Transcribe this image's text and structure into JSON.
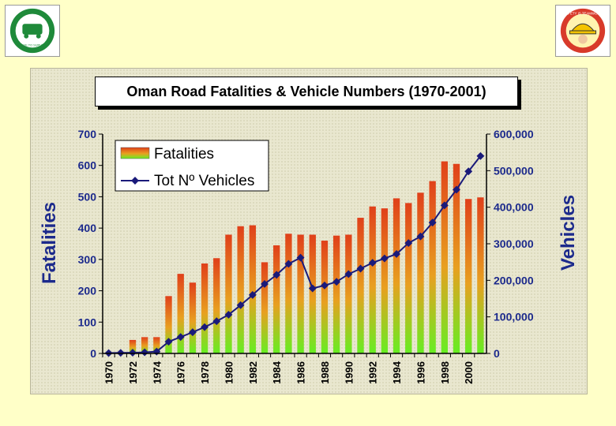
{
  "logos": {
    "left": {
      "icon": "drive-to-survive-logo",
      "text": "DRIVE TO SURVIVE"
    },
    "right": {
      "icon": "safety-teamwork-logo",
      "text": "SAFETY IS TEAMWORK"
    }
  },
  "chart_data": {
    "type": "bar",
    "title": "Oman Road Fatalities & Vehicle Numbers (1970-2001)",
    "ylabel": "Fatalities",
    "y2label": "Vehicles",
    "ylim": [
      0,
      700
    ],
    "y2lim": [
      0,
      600000
    ],
    "y_ticks": [
      "0",
      "100",
      "200",
      "300",
      "400",
      "500",
      "600",
      "700"
    ],
    "y2_ticks": [
      "0",
      "100,000",
      "200,000",
      "300,000",
      "400,000",
      "500,000",
      "600,000"
    ],
    "x_tick_labels": [
      "1970",
      "1972",
      "1974",
      "1976",
      "1978",
      "1980",
      "1982",
      "1984",
      "1986",
      "1988",
      "1990",
      "1992",
      "1994",
      "1996",
      "1998",
      "2000"
    ],
    "x": [
      1970,
      1971,
      1972,
      1973,
      1974,
      1975,
      1976,
      1977,
      1978,
      1979,
      1980,
      1981,
      1982,
      1983,
      1984,
      1985,
      1986,
      1987,
      1988,
      1989,
      1990,
      1991,
      1992,
      1993,
      1994,
      1995,
      1996,
      1997,
      1998,
      1999,
      2000,
      2001
    ],
    "legend": {
      "position": "top-left",
      "entries": [
        "Fatalities",
        "Tot Nº Vehicles"
      ]
    },
    "grid": false,
    "series": [
      {
        "name": "Fatalities",
        "type": "bar",
        "axis": "left",
        "values": [
          0,
          0,
          43,
          52,
          52,
          183,
          254,
          226,
          287,
          304,
          379,
          406,
          409,
          291,
          345,
          382,
          379,
          379,
          360,
          376,
          379,
          433,
          469,
          463,
          495,
          480,
          513,
          550,
          613,
          605,
          493,
          498
        ]
      },
      {
        "name": "Tot Nº Vehicles",
        "type": "line",
        "axis": "right",
        "values": [
          1000,
          1500,
          2000,
          3000,
          5000,
          32000,
          45000,
          58000,
          72000,
          88000,
          106000,
          132000,
          160000,
          190000,
          215000,
          245000,
          262000,
          178000,
          186000,
          196000,
          217000,
          232000,
          248000,
          260000,
          272000,
          302000,
          320000,
          358000,
          405000,
          448000,
          498000,
          540000
        ]
      }
    ],
    "colors": {
      "bar_top": "#e0401a",
      "bar_bottom": "#66ee22",
      "line": "#1a1a7a",
      "axis_title": "#1c2a8c"
    }
  }
}
